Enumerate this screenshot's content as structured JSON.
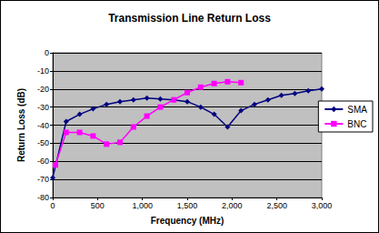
{
  "chart_data": {
    "type": "line",
    "title": "Transmission Line Return Loss",
    "x_label": "Frequency (MHz)",
    "y_label": "Return Loss (dB)",
    "series": [
      {
        "name": "SMA",
        "color": "#000080",
        "marker": "diamond",
        "x": [
          0,
          150,
          300,
          450,
          600,
          750,
          900,
          1050,
          1200,
          1350,
          1500,
          1650,
          1800,
          1950,
          2100,
          2250,
          2400,
          2550,
          2700,
          2850,
          3000
        ],
        "values": [
          -69,
          -38,
          -34,
          -31,
          -28.5,
          -27,
          -26,
          -25,
          -25.5,
          -26,
          -27,
          -30,
          -34,
          -41,
          -32,
          -28.5,
          -26,
          -23.5,
          -22.5,
          -21,
          -20
        ]
      },
      {
        "name": "BNC",
        "color": "#ff00ff",
        "marker": "square",
        "x": [
          30,
          150,
          300,
          450,
          600,
          750,
          900,
          1050,
          1200,
          1350,
          1500,
          1650,
          1800,
          1950,
          2100
        ],
        "values": [
          -62,
          -44,
          -44,
          -46,
          -50.5,
          -49.5,
          -41,
          -35,
          -30,
          -26,
          -22,
          -19,
          -17,
          -16,
          -16.5
        ]
      }
    ],
    "xlim": [
      0,
      3000
    ],
    "xticks": [
      0,
      500,
      1000,
      1500,
      2000,
      2500,
      3000
    ],
    "ylim": [
      -80,
      0
    ],
    "yticks": [
      -80,
      -70,
      -60,
      -50,
      -40,
      -30,
      -20,
      -10,
      0
    ],
    "grid": true,
    "legend": "right"
  }
}
